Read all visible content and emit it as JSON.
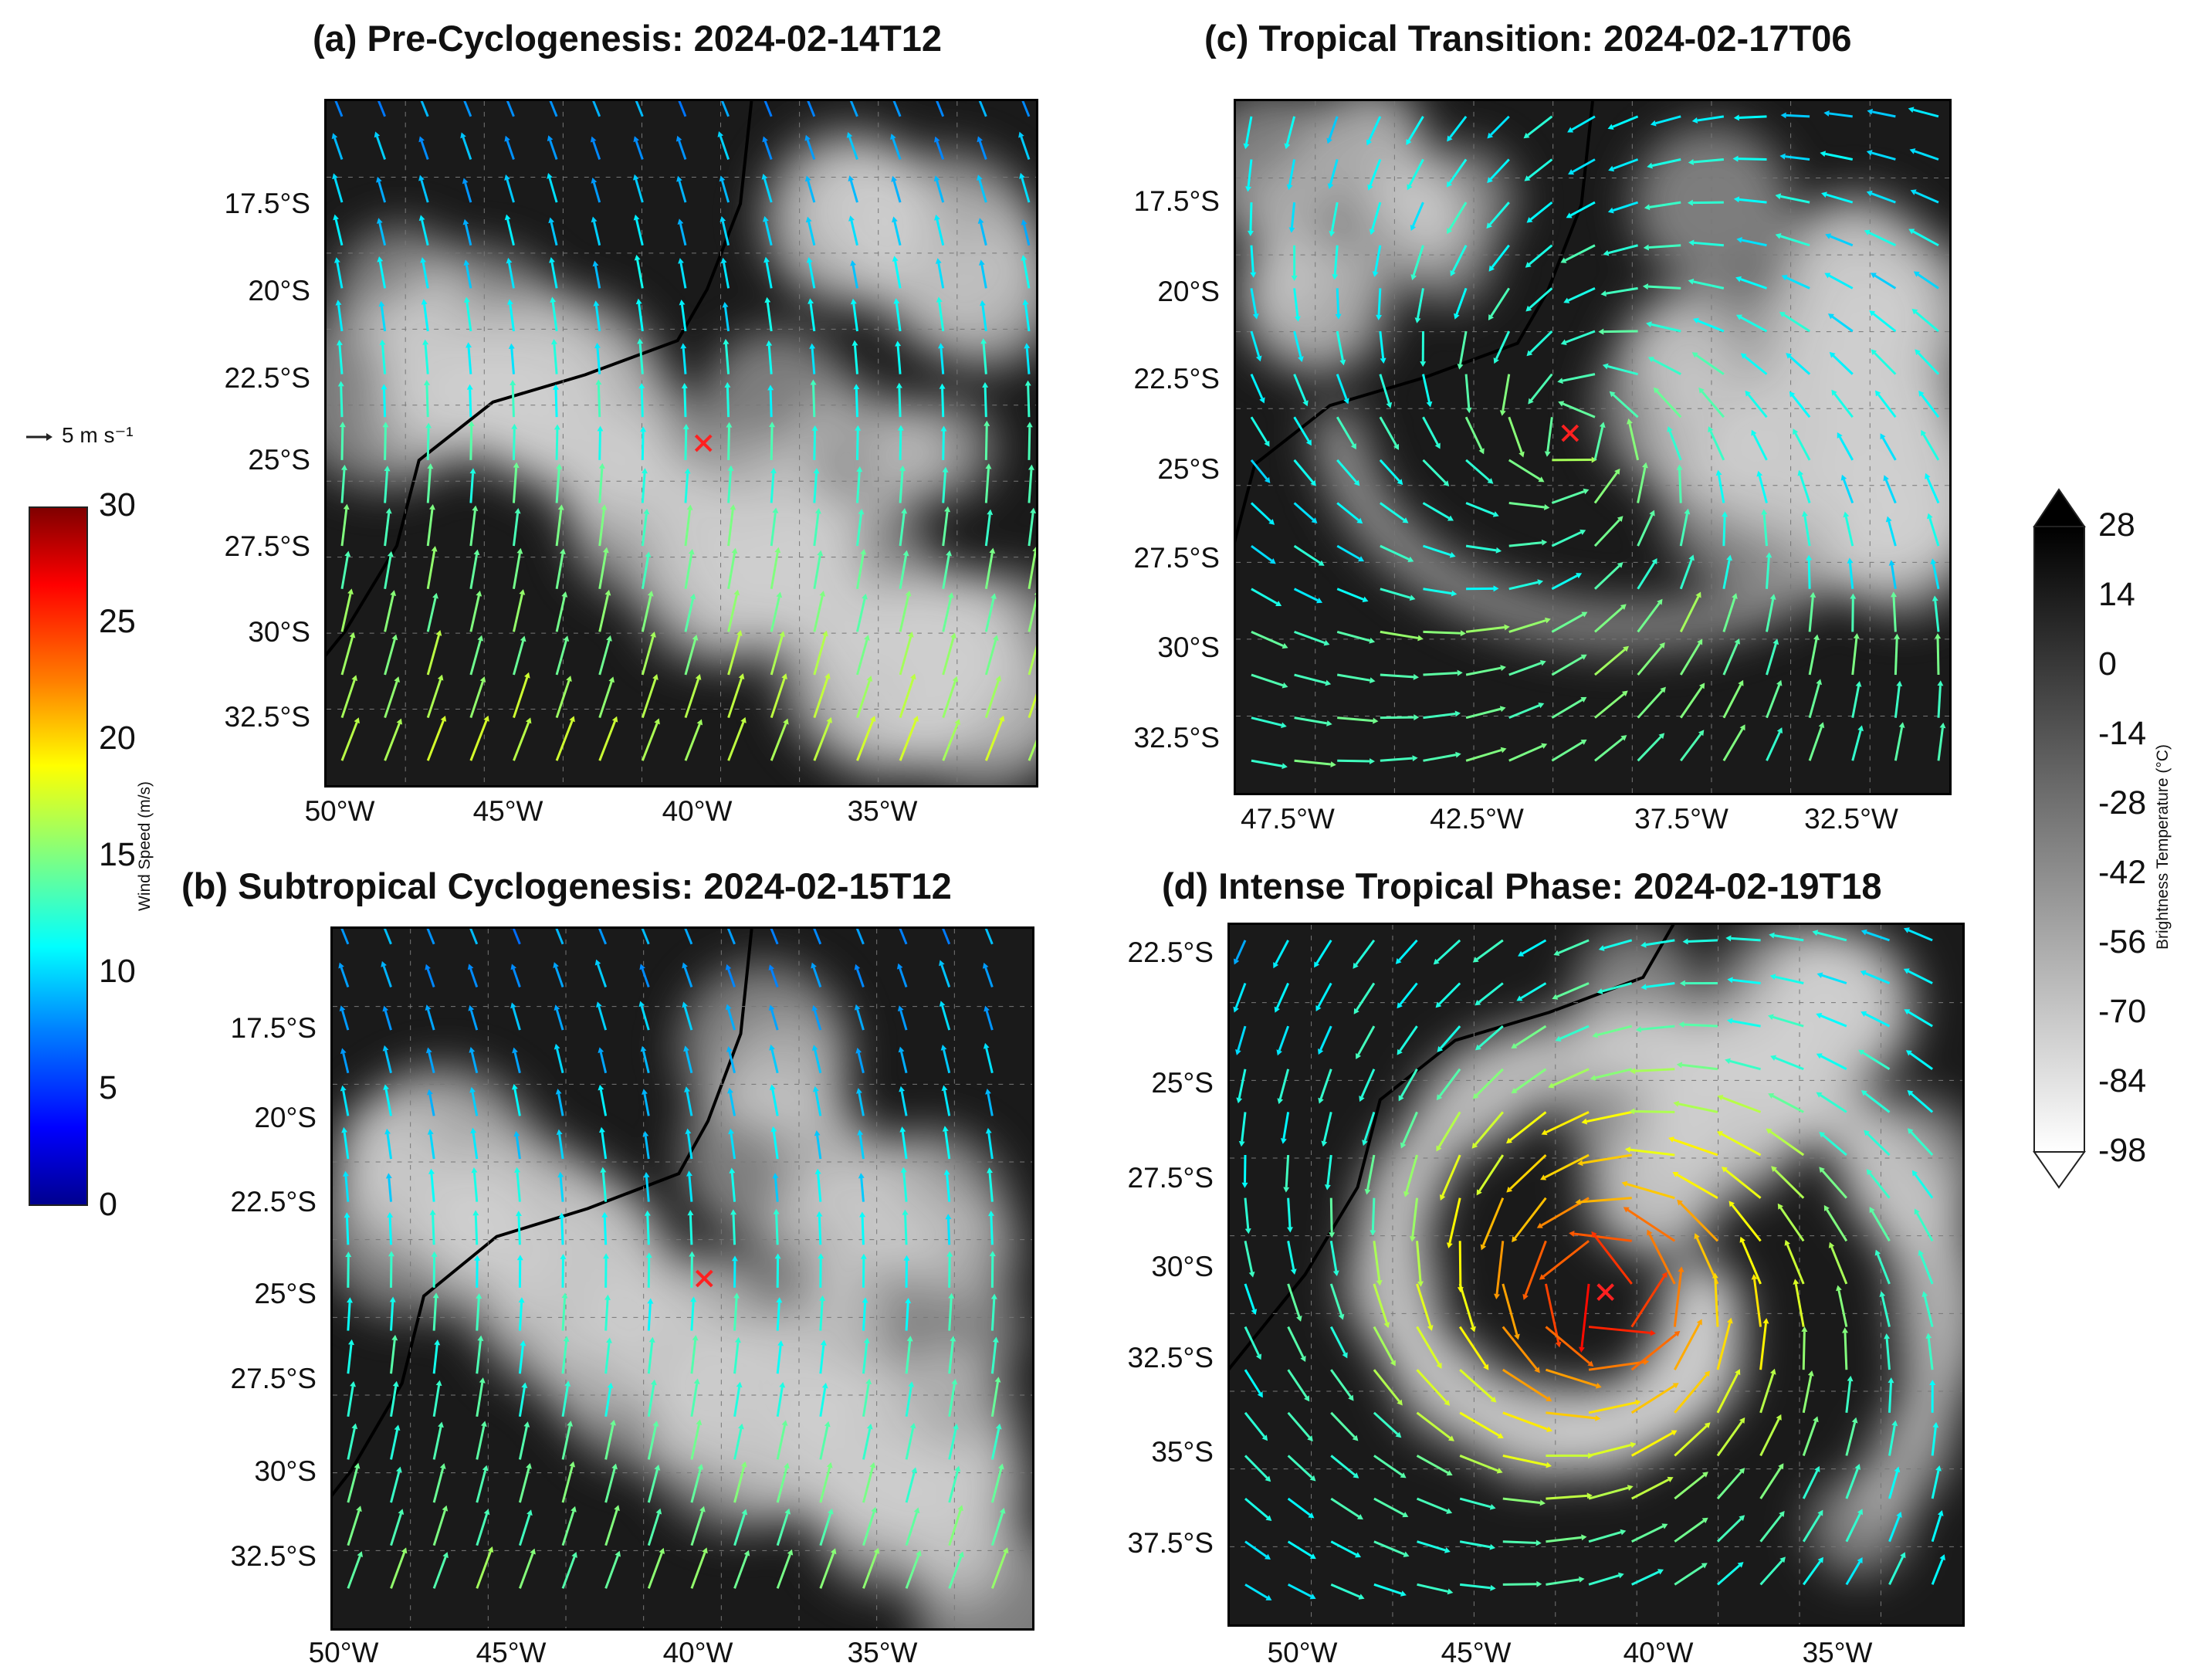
{
  "panels": [
    {
      "id": "a",
      "title": "(a) Pre-Cyclogenesis: 2024-02-14T12",
      "lat_ticks": [
        "17.5°S",
        "20°S",
        "22.5°S",
        "25°S",
        "27.5°S",
        "30°S",
        "32.5°S"
      ],
      "lon_ticks": [
        "50°W",
        "45°W",
        "40°W",
        "35°W"
      ],
      "center": {
        "lon": -40.3,
        "lat": -25.0
      }
    },
    {
      "id": "b",
      "title": "(b) Subtropical Cyclogenesis: 2024-02-15T12",
      "lat_ticks": [
        "17.5°S",
        "20°S",
        "22.5°S",
        "25°S",
        "27.5°S",
        "30°S",
        "32.5°S"
      ],
      "lon_ticks": [
        "50°W",
        "45°W",
        "40°W",
        "35°W"
      ],
      "center": {
        "lon": -40.3,
        "lat": -25.0
      }
    },
    {
      "id": "c",
      "title": "(c) Tropical Transition: 2024-02-17T06",
      "lat_ticks": [
        "17.5°S",
        "20°S",
        "22.5°S",
        "25°S",
        "27.5°S",
        "30°S",
        "32.5°S"
      ],
      "lon_ticks": [
        "47.5°W",
        "42.5°W",
        "37.5°W",
        "32.5°W"
      ],
      "center": {
        "lon": -39.6,
        "lat": -24.6
      }
    },
    {
      "id": "d",
      "title": "(d) Intense Tropical Phase: 2024-02-19T18",
      "lat_ticks": [
        "22.5°S",
        "25°S",
        "27.5°S",
        "30°S",
        "32.5°S",
        "35°S",
        "37.5°S"
      ],
      "lon_ticks": [
        "50°W",
        "45°W",
        "40°W",
        "35°W"
      ],
      "center": {
        "lon": -42.0,
        "lat": -31.0
      }
    }
  ],
  "wind_colorbar": {
    "label": "Wind Speed (m/s)",
    "ticks": [
      "30",
      "25",
      "20",
      "15",
      "10",
      "5",
      "0"
    ],
    "range": [
      0,
      30
    ],
    "colormap": "jet"
  },
  "reference_arrow": {
    "label": "5 m s⁻¹",
    "value": 5
  },
  "bt_colorbar": {
    "label": "Brightness Temperature (°C)",
    "ticks": [
      "28",
      "14",
      "0",
      "-14",
      "-28",
      "-42",
      "-56",
      "-70",
      "-84",
      "-98"
    ],
    "range": [
      -98,
      28
    ],
    "extend": "both",
    "colormap": "gray_r"
  },
  "marker": {
    "symbol": "x",
    "color": "#ff2020"
  }
}
